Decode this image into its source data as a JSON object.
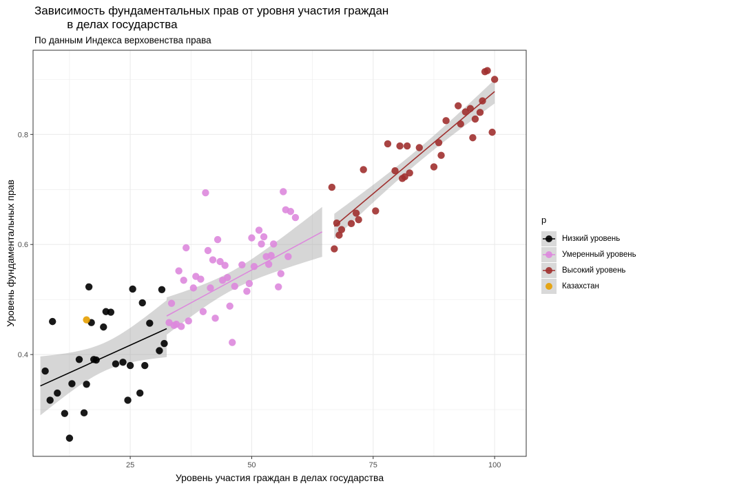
{
  "chart_data": {
    "type": "scatter",
    "title": "Зависимость фундаментальных прав от уровня участия граждан\n          в делах государства",
    "subtitle": "По данным Индекса верховенства права",
    "xlabel": "Уровень участия граждан в делах государства",
    "ylabel": "Уровень фундаментальных прав",
    "xlim": [
      5,
      106.5
    ],
    "ylim": [
      0.215,
      0.953
    ],
    "x_ticks": [
      25,
      50,
      75,
      100
    ],
    "y_ticks": [
      0.4,
      0.6,
      0.8
    ],
    "grid": true,
    "legend_title": "p",
    "legend_position": "right",
    "series": [
      {
        "name": "Низкий уровень",
        "color": "#000000",
        "points": [
          [
            7.5,
            0.37
          ],
          [
            8.5,
            0.317
          ],
          [
            9,
            0.46
          ],
          [
            10,
            0.33
          ],
          [
            11.5,
            0.293
          ],
          [
            12.5,
            0.248
          ],
          [
            13,
            0.347
          ],
          [
            14.5,
            0.391
          ],
          [
            15.5,
            0.294
          ],
          [
            16,
            0.346
          ],
          [
            16.5,
            0.523
          ],
          [
            17,
            0.458
          ],
          [
            17.5,
            0.391
          ],
          [
            18,
            0.39
          ],
          [
            19.5,
            0.45
          ],
          [
            20,
            0.478
          ],
          [
            21,
            0.477
          ],
          [
            22,
            0.383
          ],
          [
            23.5,
            0.386
          ],
          [
            24.5,
            0.317
          ],
          [
            25,
            0.38
          ],
          [
            25.5,
            0.519
          ],
          [
            27,
            0.33
          ],
          [
            27.5,
            0.494
          ],
          [
            28,
            0.38
          ],
          [
            29,
            0.457
          ],
          [
            31,
            0.407
          ],
          [
            31.5,
            0.518
          ],
          [
            32,
            0.42
          ]
        ],
        "trend": {
          "x": [
            6.5,
            32.5
          ],
          "y": [
            0.343,
            0.447
          ]
        }
      },
      {
        "name": "Умеренный уровень",
        "color": "#dd88dd",
        "points": [
          [
            33,
            0.458
          ],
          [
            33.5,
            0.493
          ],
          [
            34,
            0.453
          ],
          [
            34.5,
            0.455
          ],
          [
            35,
            0.552
          ],
          [
            35.5,
            0.451
          ],
          [
            36,
            0.535
          ],
          [
            36.5,
            0.594
          ],
          [
            37,
            0.461
          ],
          [
            38,
            0.521
          ],
          [
            38.5,
            0.542
          ],
          [
            39.5,
            0.537
          ],
          [
            40,
            0.478
          ],
          [
            40.5,
            0.694
          ],
          [
            41,
            0.589
          ],
          [
            41.5,
            0.521
          ],
          [
            42,
            0.572
          ],
          [
            42.5,
            0.466
          ],
          [
            43,
            0.609
          ],
          [
            43.5,
            0.569
          ],
          [
            44,
            0.535
          ],
          [
            44.5,
            0.562
          ],
          [
            45,
            0.54
          ],
          [
            45.5,
            0.488
          ],
          [
            46,
            0.422
          ],
          [
            46.5,
            0.524
          ],
          [
            48,
            0.563
          ],
          [
            49,
            0.515
          ],
          [
            49.5,
            0.529
          ],
          [
            50,
            0.612
          ],
          [
            50.5,
            0.56
          ],
          [
            51.5,
            0.626
          ],
          [
            52,
            0.601
          ],
          [
            52.5,
            0.614
          ],
          [
            53,
            0.578
          ],
          [
            53.5,
            0.564
          ],
          [
            54,
            0.58
          ],
          [
            54.5,
            0.601
          ],
          [
            55.5,
            0.523
          ],
          [
            56,
            0.547
          ],
          [
            56.5,
            0.696
          ],
          [
            57,
            0.663
          ],
          [
            57.5,
            0.578
          ],
          [
            58,
            0.66
          ],
          [
            59,
            0.649
          ]
        ],
        "trend": {
          "x": [
            32.5,
            64.5
          ],
          "y": [
            0.47,
            0.623
          ]
        }
      },
      {
        "name": "Высокий уровень",
        "color": "#a0302f",
        "points": [
          [
            66.5,
            0.704
          ],
          [
            67,
            0.592
          ],
          [
            67.5,
            0.639
          ],
          [
            68,
            0.617
          ],
          [
            68.5,
            0.627
          ],
          [
            70.5,
            0.638
          ],
          [
            71.5,
            0.657
          ],
          [
            72,
            0.645
          ],
          [
            73,
            0.736
          ],
          [
            75.5,
            0.661
          ],
          [
            78,
            0.783
          ],
          [
            79.5,
            0.734
          ],
          [
            80.5,
            0.779
          ],
          [
            81,
            0.72
          ],
          [
            81.5,
            0.723
          ],
          [
            82.5,
            0.73
          ],
          [
            82,
            0.779
          ],
          [
            84.5,
            0.776
          ],
          [
            87.5,
            0.741
          ],
          [
            88.5,
            0.785
          ],
          [
            89,
            0.762
          ],
          [
            90,
            0.825
          ],
          [
            92.5,
            0.852
          ],
          [
            93,
            0.819
          ],
          [
            94,
            0.841
          ],
          [
            95,
            0.847
          ],
          [
            95.5,
            0.794
          ],
          [
            96,
            0.828
          ],
          [
            97,
            0.84
          ],
          [
            97.5,
            0.861
          ],
          [
            98,
            0.914
          ],
          [
            98.5,
            0.916
          ],
          [
            99.5,
            0.804
          ],
          [
            100,
            0.9
          ]
        ],
        "trend": {
          "x": [
            67,
            100
          ],
          "y": [
            0.633,
            0.878
          ]
        }
      },
      {
        "name": "Казахстан",
        "color": "#e69f00",
        "points": [
          [
            16,
            0.463
          ]
        ]
      }
    ]
  }
}
